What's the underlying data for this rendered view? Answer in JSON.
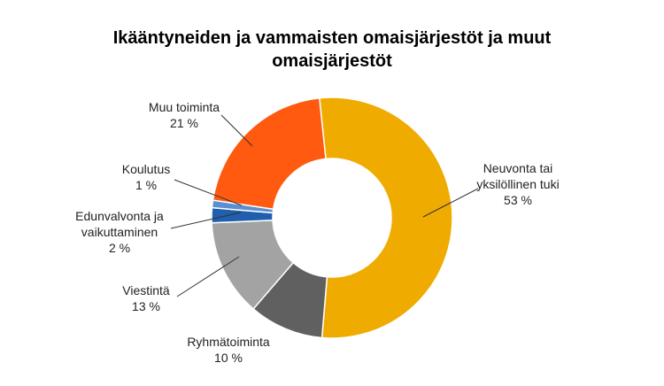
{
  "chart_data": {
    "type": "donut",
    "title": "Ikääntyneiden ja vammaisten omaisjärjestöt ja muut omaisjärjestöt",
    "categories": [
      "Neuvonta tai yksilöllinen tuki",
      "Ryhmätoiminta",
      "Viestintä",
      "Edunvalvonta ja vaikuttaminen",
      "Koulutus",
      "Muu toiminta"
    ],
    "values": [
      53,
      10,
      13,
      2,
      1,
      21
    ],
    "value_labels": [
      "53 %",
      "10 %",
      "13 %",
      "2 %",
      "1 %",
      "21 %"
    ],
    "colors": [
      "#f0ab00",
      "#606060",
      "#a3a3a3",
      "#1f5fad",
      "#5b8fd0",
      "#ff5a0f"
    ]
  }
}
